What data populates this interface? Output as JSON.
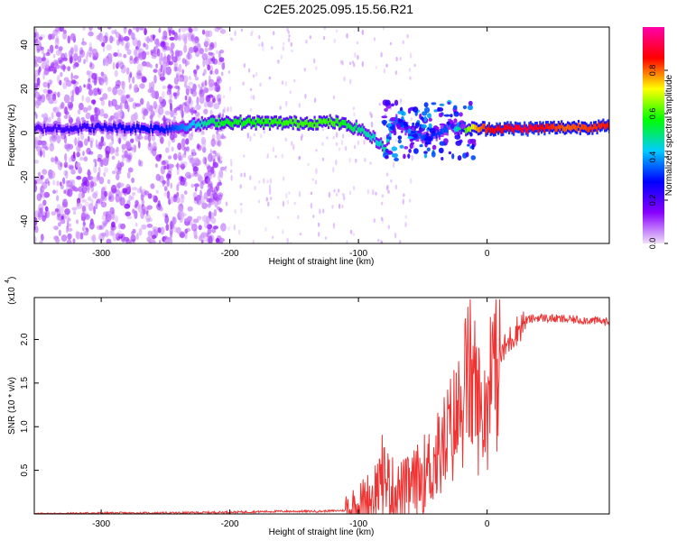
{
  "figure_title": "C2E5.2025.095.15.56.R21",
  "chart_data": [
    {
      "type": "heatmap",
      "xlabel": "Height of straight line (km)",
      "ylabel": "Frequency (Hz)",
      "xlim": [
        -352,
        95
      ],
      "ylim": [
        -50,
        48
      ],
      "x_ticks": [
        -300,
        -200,
        -100,
        0
      ],
      "y_ticks": [
        -40,
        -20,
        0,
        20,
        40
      ],
      "colorbar": {
        "label": "Normalized spectral amplitude",
        "range": [
          0,
          1
        ],
        "ticks": [
          0.0,
          0.2,
          0.4,
          0.6,
          0.8
        ],
        "colors": [
          "#f0e0f8",
          "#8800ff",
          "#0000ff",
          "#00ccff",
          "#00ff00",
          "#ffff00",
          "#ff0000",
          "#ff00aa"
        ]
      },
      "ridge": {
        "x": [
          -352,
          -300,
          -250,
          -210,
          -150,
          -120,
          -100,
          -85,
          -80,
          -72,
          -60,
          -45,
          -30,
          -20,
          -10,
          0,
          30,
          60,
          95
        ],
        "y": [
          2,
          2.5,
          2,
          5,
          4.5,
          5,
          2,
          -4,
          -7,
          6,
          0,
          -2,
          3,
          2,
          2,
          2,
          2,
          2.5,
          3
        ],
        "amplitude": [
          0.2,
          0.25,
          0.3,
          0.55,
          0.6,
          0.6,
          0.5,
          0.45,
          0.5,
          0.35,
          0.4,
          0.3,
          0.35,
          0.55,
          0.75,
          0.85,
          0.9,
          0.8,
          0.85
        ]
      },
      "noise_region": {
        "x_range": [
          -352,
          -205
        ],
        "level": "dense"
      },
      "grid": false
    },
    {
      "type": "line",
      "xlabel": "Height of straight line (km)",
      "ylabel": "SNR (10 * v/v)",
      "multiplier_label": "(x10",
      "multiplier_exp": "4",
      "xlim": [
        -352,
        95
      ],
      "ylim": [
        0,
        2.48
      ],
      "x_ticks": [
        -300,
        -200,
        -100,
        0
      ],
      "y_ticks": [
        0.5,
        1.0,
        1.5,
        2.0
      ],
      "series": [
        {
          "color": "#ee3333",
          "x": [
            -352,
            -300,
            -250,
            -200,
            -160,
            -130,
            -110,
            -100,
            -90,
            -80,
            -75,
            -70,
            -60,
            -50,
            -40,
            -30,
            -20,
            -15,
            -10,
            -5,
            0,
            5,
            10,
            20,
            30,
            40,
            60,
            80,
            95
          ],
          "y": [
            0.0,
            0.01,
            0.01,
            0.02,
            0.03,
            0.03,
            0.04,
            0.08,
            0.2,
            0.45,
            0.3,
            0.25,
            0.3,
            0.45,
            0.6,
            0.9,
            1.2,
            1.6,
            1.5,
            1.1,
            1.3,
            1.55,
            1.8,
            2.05,
            2.22,
            2.25,
            2.23,
            2.22,
            2.2
          ]
        }
      ],
      "grid": false
    }
  ]
}
